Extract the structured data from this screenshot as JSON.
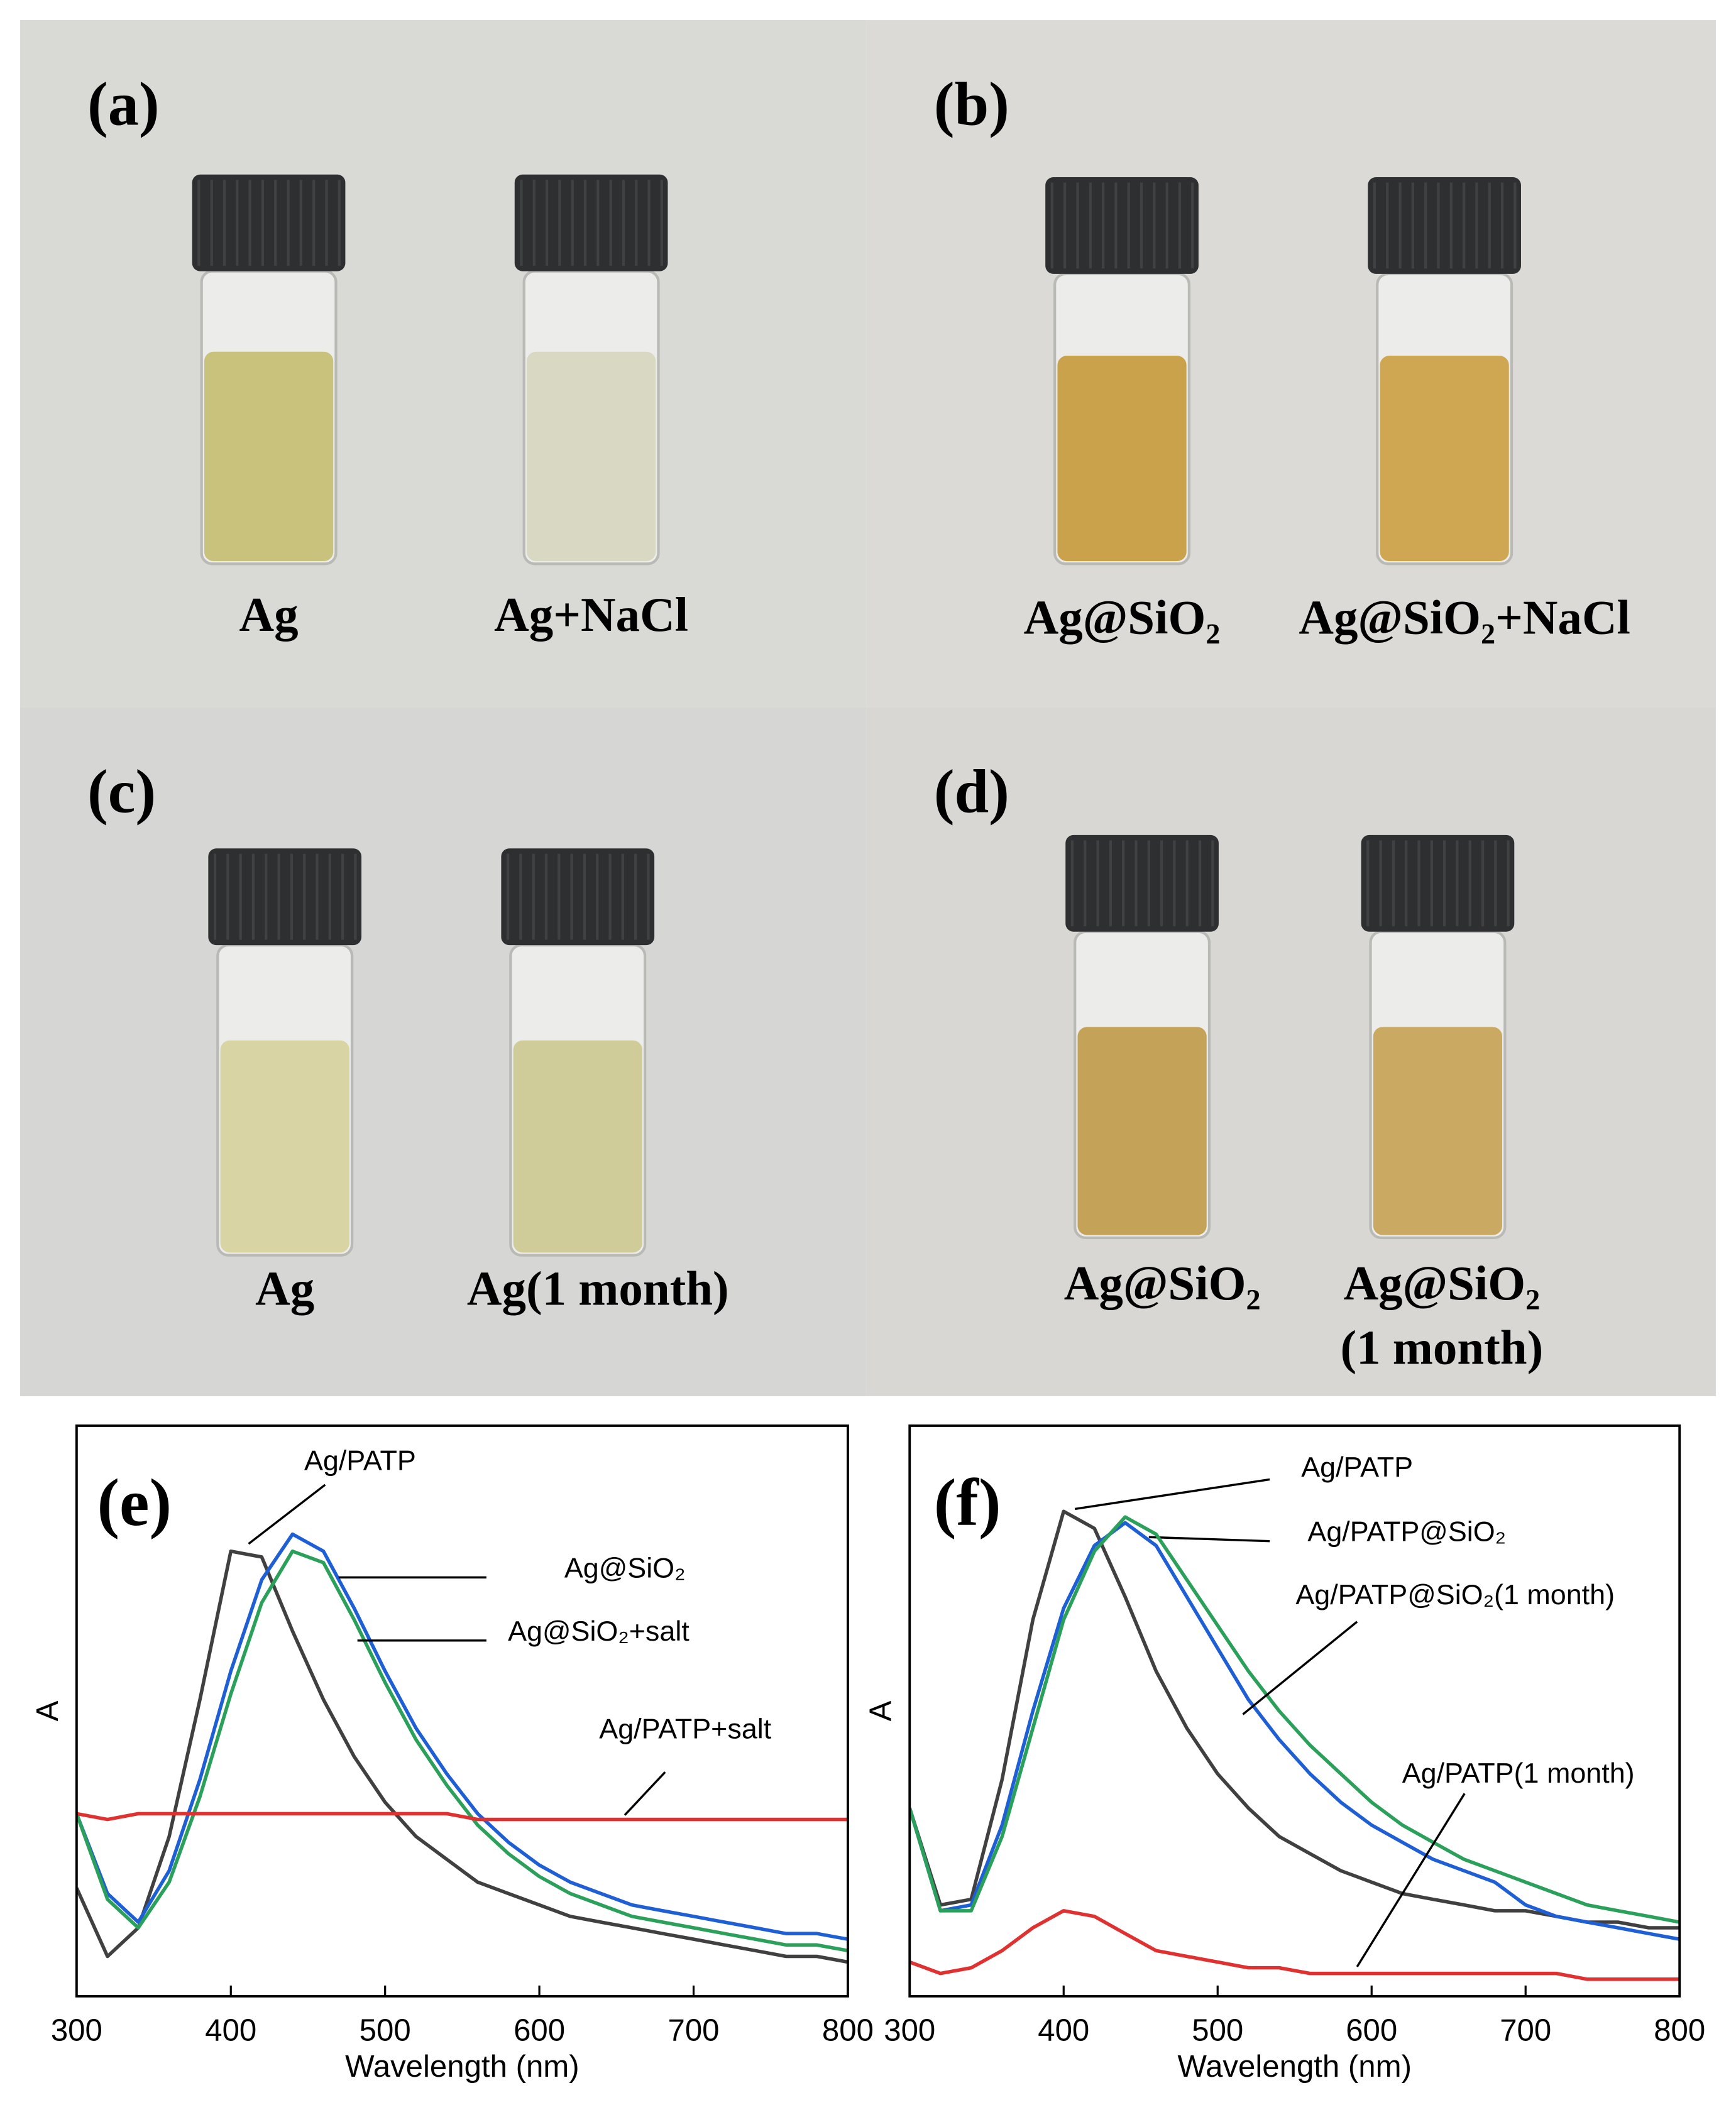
{
  "photo_panels": [
    {
      "label": "(a)",
      "samples": [
        {
          "lines": [
            "Ag"
          ]
        },
        {
          "lines": [
            "Ag+NaCl"
          ]
        }
      ]
    },
    {
      "label": "(b)",
      "samples": [
        {
          "lines": [
            "Ag@SiO₂"
          ]
        },
        {
          "lines": [
            "Ag@SiO₂+NaCl"
          ]
        }
      ]
    },
    {
      "label": "(c)",
      "samples": [
        {
          "lines": [
            "Ag"
          ]
        },
        {
          "lines": [
            "Ag(1 month)"
          ]
        }
      ]
    },
    {
      "label": "(d)",
      "samples": [
        {
          "lines": [
            "Ag@SiO₂"
          ]
        },
        {
          "lines": [
            "Ag@SiO₂",
            "(1 month)"
          ]
        }
      ]
    }
  ],
  "chart_data": [
    {
      "type": "line",
      "panel_label": "(e)",
      "x_label": "Wavelength (nm)",
      "y_label": "A",
      "xlim": [
        300,
        800
      ],
      "ylim": [
        0,
        1
      ],
      "xticks": [
        300,
        400,
        500,
        600,
        700,
        800
      ],
      "x": [
        300,
        320,
        340,
        360,
        380,
        400,
        420,
        440,
        460,
        480,
        500,
        520,
        540,
        560,
        580,
        600,
        620,
        640,
        660,
        680,
        700,
        720,
        740,
        760,
        780,
        800
      ],
      "series": [
        {
          "name": "Ag/PATP",
          "color": "#404040",
          "values": [
            0.19,
            0.07,
            0.12,
            0.28,
            0.52,
            0.78,
            0.77,
            0.64,
            0.52,
            0.42,
            0.34,
            0.28,
            0.24,
            0.2,
            0.18,
            0.16,
            0.14,
            0.13,
            0.12,
            0.11,
            0.1,
            0.09,
            0.08,
            0.07,
            0.07,
            0.06
          ]
        },
        {
          "name": "Ag@SiO₂",
          "color": "#1f5fd6",
          "values": [
            0.32,
            0.18,
            0.13,
            0.22,
            0.38,
            0.57,
            0.73,
            0.81,
            0.78,
            0.68,
            0.57,
            0.47,
            0.39,
            0.32,
            0.27,
            0.23,
            0.2,
            0.18,
            0.16,
            0.15,
            0.14,
            0.13,
            0.12,
            0.11,
            0.11,
            0.1
          ]
        },
        {
          "name": "Ag@SiO₂+salt",
          "color": "#2aa05a",
          "values": [
            0.32,
            0.17,
            0.12,
            0.2,
            0.35,
            0.53,
            0.69,
            0.78,
            0.76,
            0.66,
            0.55,
            0.45,
            0.37,
            0.3,
            0.25,
            0.21,
            0.18,
            0.16,
            0.14,
            0.13,
            0.12,
            0.11,
            0.1,
            0.09,
            0.09,
            0.08
          ]
        },
        {
          "name": "Ag/PATP+salt",
          "color": "#e03030",
          "values": [
            0.32,
            0.31,
            0.32,
            0.32,
            0.32,
            0.32,
            0.32,
            0.32,
            0.32,
            0.32,
            0.32,
            0.32,
            0.32,
            0.31,
            0.31,
            0.31,
            0.31,
            0.31,
            0.31,
            0.31,
            0.31,
            0.31,
            0.31,
            0.31,
            0.31,
            0.31
          ]
        }
      ]
    },
    {
      "type": "line",
      "panel_label": "(f)",
      "x_label": "Wavelength (nm)",
      "y_label": "A",
      "xlim": [
        300,
        800
      ],
      "ylim": [
        0,
        1
      ],
      "xticks": [
        300,
        400,
        500,
        600,
        700,
        800
      ],
      "x": [
        300,
        320,
        340,
        360,
        380,
        400,
        420,
        440,
        460,
        480,
        500,
        520,
        540,
        560,
        580,
        600,
        620,
        640,
        660,
        680,
        700,
        720,
        740,
        760,
        780,
        800
      ],
      "series": [
        {
          "name": "Ag/PATP",
          "color": "#404040",
          "values": [
            0.33,
            0.16,
            0.17,
            0.38,
            0.66,
            0.85,
            0.82,
            0.7,
            0.57,
            0.47,
            0.39,
            0.33,
            0.28,
            0.25,
            0.22,
            0.2,
            0.18,
            0.17,
            0.16,
            0.15,
            0.15,
            0.14,
            0.13,
            0.13,
            0.12,
            0.12
          ]
        },
        {
          "name": "Ag/PATP@SiO₂",
          "color": "#1f5fd6",
          "values": [
            0.33,
            0.15,
            0.16,
            0.3,
            0.5,
            0.68,
            0.79,
            0.83,
            0.79,
            0.7,
            0.61,
            0.52,
            0.45,
            0.39,
            0.34,
            0.3,
            0.27,
            0.24,
            0.22,
            0.2,
            0.16,
            0.14,
            0.13,
            0.12,
            0.11,
            0.1
          ]
        },
        {
          "name": "Ag/PATP@SiO₂(1 month)",
          "color": "#2aa05a",
          "values": [
            0.33,
            0.15,
            0.15,
            0.28,
            0.47,
            0.66,
            0.78,
            0.84,
            0.81,
            0.73,
            0.65,
            0.57,
            0.5,
            0.44,
            0.39,
            0.34,
            0.3,
            0.27,
            0.24,
            0.22,
            0.2,
            0.18,
            0.16,
            0.15,
            0.14,
            0.13
          ]
        },
        {
          "name": "Ag/PATP(1 month)",
          "color": "#e03030",
          "values": [
            0.06,
            0.04,
            0.05,
            0.08,
            0.12,
            0.15,
            0.14,
            0.11,
            0.08,
            0.07,
            0.06,
            0.05,
            0.05,
            0.04,
            0.04,
            0.04,
            0.04,
            0.04,
            0.04,
            0.04,
            0.04,
            0.04,
            0.03,
            0.03,
            0.03,
            0.03
          ]
        }
      ]
    }
  ]
}
